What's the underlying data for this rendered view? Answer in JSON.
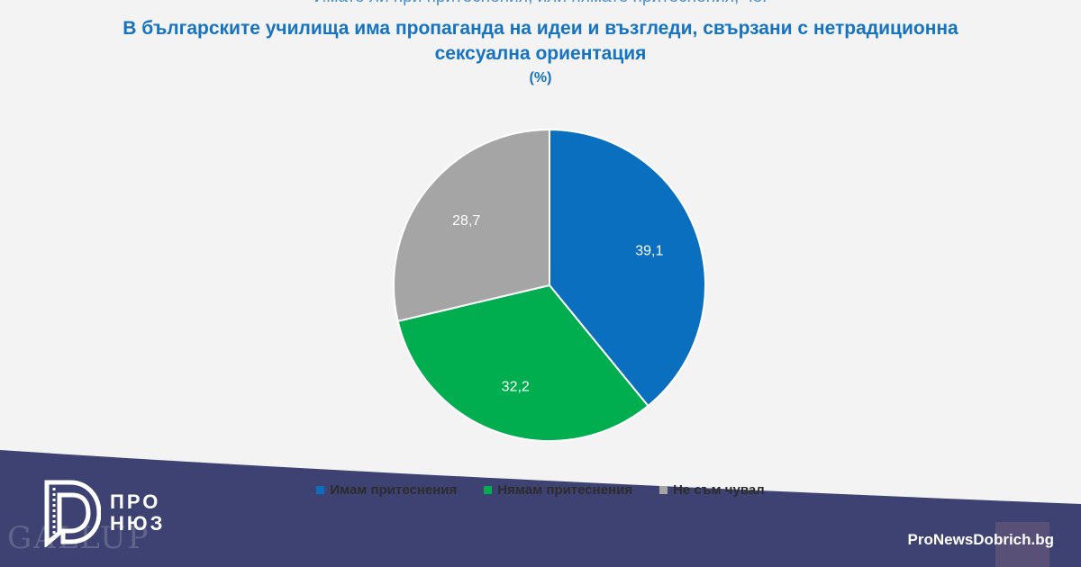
{
  "chart_data": {
    "type": "pie",
    "title_question": "Имате ли при притеснения, или нямате притеснения, че:",
    "title": "В българските училища има пропаганда на идеи и възгледи, свързани с нетрадиционна",
    "title_line2": "сексуална ориентация",
    "unit": "(%)",
    "slices": [
      {
        "label": "Имам притеснения",
        "value": 39.1,
        "display": "39,1",
        "color": "#0b6fc0"
      },
      {
        "label": "Нямам притеснения",
        "value": 32.2,
        "display": "32,2",
        "color": "#00ad4f"
      },
      {
        "label": "Не съм чувал",
        "value": 28.7,
        "display": "28,7",
        "color": "#a5a5a5"
      }
    ],
    "legend_position": "bottom"
  },
  "branding": {
    "logo_line1": "ПРО",
    "logo_line2": "НЮЗ",
    "site": "ProNewsDobrich.bg",
    "watermark": "GALLUP"
  },
  "colors": {
    "banner": "#3d4272",
    "title": "#1673c4"
  }
}
